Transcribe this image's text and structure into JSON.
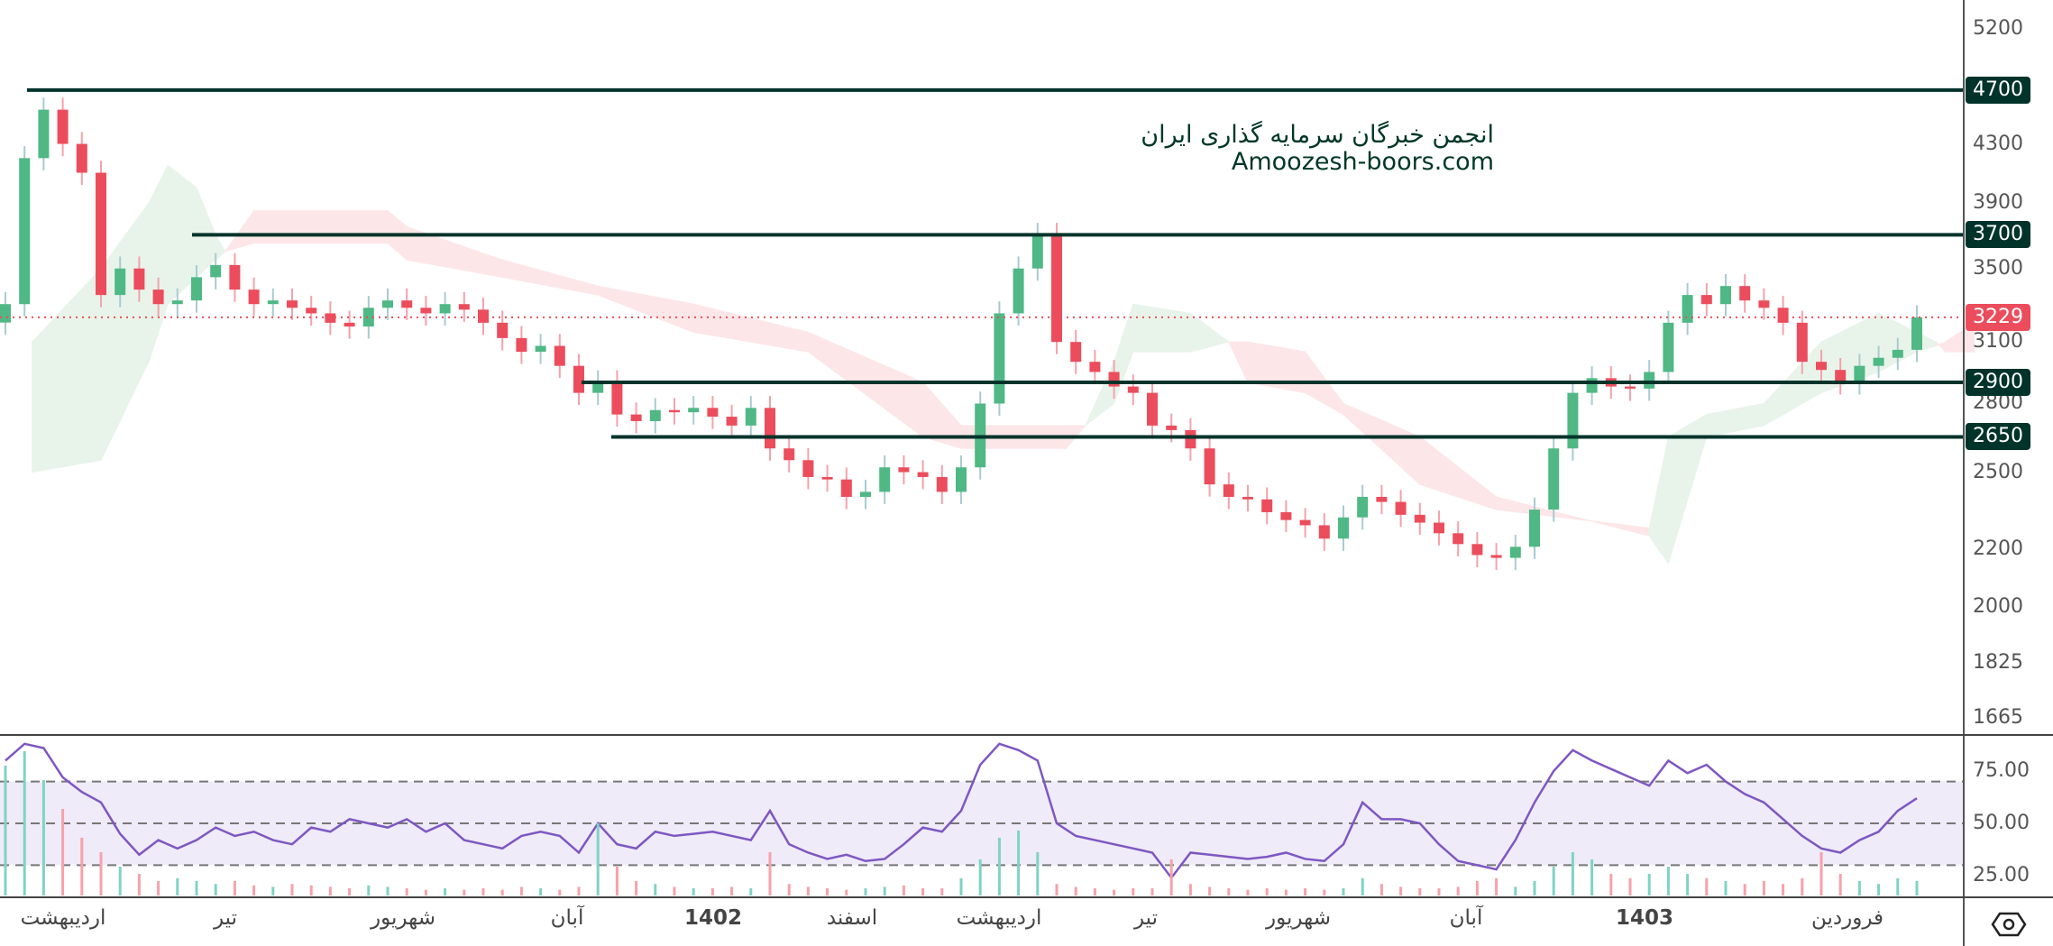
{
  "watermark": {
    "line1": "انجمن خبرگان سرمایه گذاری ایران",
    "line2": "Amoozesh-boors.com"
  },
  "colors": {
    "up": "#4fb884",
    "down": "#eb4d5c",
    "level_line": "#00332a",
    "last_price": "#eb4d5c",
    "cloud_up": "#e8f4ea",
    "cloud_down": "#fde6e8",
    "rsi": "#7e57c2",
    "rsi_band": "#efebf8"
  },
  "chart_data": [
    {
      "type": "candlestick",
      "yscale": "log",
      "ylim": [
        1600,
        5400
      ],
      "y_ticks": [
        "5200",
        "4300",
        "3900",
        "3500",
        "3100",
        "2800",
        "2500",
        "2200",
        "2000",
        "1825",
        "1665"
      ],
      "x_ticks": [
        "اردیبهشت",
        "تیر",
        "شهریور",
        "آبان",
        "1402",
        "اسفند",
        "اردیبهشت",
        "تیر",
        "شهریور",
        "آبان",
        "1403",
        "فروردین"
      ],
      "levels": [
        "4700",
        "3700",
        "2900",
        "2650"
      ],
      "last_price": "3229",
      "close": [
        3300,
        4200,
        4550,
        4300,
        4100,
        3350,
        3500,
        3380,
        3300,
        3320,
        3450,
        3520,
        3380,
        3300,
        3320,
        3280,
        3250,
        3200,
        3180,
        3280,
        3320,
        3280,
        3250,
        3300,
        3270,
        3200,
        3120,
        3050,
        3080,
        2980,
        2850,
        2900,
        2750,
        2720,
        2770,
        2760,
        2780,
        2740,
        2700,
        2780,
        2600,
        2550,
        2480,
        2470,
        2400,
        2420,
        2520,
        2500,
        2480,
        2420,
        2520,
        2800,
        3250,
        3500,
        3700,
        3100,
        3000,
        2950,
        2880,
        2850,
        2700,
        2680,
        2600,
        2450,
        2400,
        2390,
        2340,
        2310,
        2290,
        2240,
        2320,
        2400,
        2380,
        2330,
        2300,
        2260,
        2220,
        2180,
        2170,
        2210,
        2350,
        2600,
        2850,
        2920,
        2880,
        2870,
        2950,
        3200,
        3350,
        3300,
        3400,
        3320,
        3280,
        3200,
        3000,
        2960,
        2900,
        2980,
        3020,
        3060,
        3229
      ],
      "volume": [
        0.9,
        1,
        0.8,
        0.6,
        0.4,
        0.3,
        0.2,
        0.15,
        0.1,
        0.12,
        0.1,
        0.08,
        0.1,
        0.07,
        0.06,
        0.08,
        0.07,
        0.06,
        0.05,
        0.07,
        0.06,
        0.05,
        0.04,
        0.05,
        0.04,
        0.05,
        0.04,
        0.06,
        0.05,
        0.04,
        0.06,
        0.5,
        0.2,
        0.1,
        0.08,
        0.06,
        0.05,
        0.05,
        0.06,
        0.05,
        0.3,
        0.08,
        0.06,
        0.05,
        0.04,
        0.05,
        0.06,
        0.07,
        0.05,
        0.05,
        0.12,
        0.25,
        0.4,
        0.45,
        0.3,
        0.08,
        0.06,
        0.05,
        0.04,
        0.05,
        0.05,
        0.25,
        0.08,
        0.06,
        0.05,
        0.04,
        0.05,
        0.04,
        0.05,
        0.04,
        0.05,
        0.12,
        0.08,
        0.06,
        0.05,
        0.05,
        0.06,
        0.1,
        0.12,
        0.06,
        0.1,
        0.2,
        0.3,
        0.25,
        0.15,
        0.12,
        0.15,
        0.2,
        0.15,
        0.12,
        0.1,
        0.08,
        0.1,
        0.08,
        0.12,
        0.3,
        0.15,
        0.1,
        0.08,
        0.12,
        0.1
      ],
      "cloud": [
        [
          1.4,
          3100,
          2500
        ],
        [
          5,
          3500,
          2550
        ],
        [
          7.5,
          3900,
          3000
        ],
        [
          8.5,
          4150,
          3300
        ],
        [
          10,
          4000,
          3450
        ],
        [
          11,
          3700,
          3550
        ],
        [
          11.5,
          3600,
          3600
        ],
        [
          13,
          3650,
          3850
        ],
        [
          20,
          3650,
          3850
        ],
        [
          21,
          3550,
          3750
        ],
        [
          26,
          3450,
          3550
        ],
        [
          31,
          3350,
          3400
        ],
        [
          36,
          3150,
          3300
        ],
        [
          42,
          3050,
          3150
        ],
        [
          48,
          2650,
          2900
        ],
        [
          50,
          2600,
          2700
        ],
        [
          55.5,
          2600,
          2700
        ],
        [
          56.5,
          2700,
          2700
        ],
        [
          58,
          3000,
          2800
        ],
        [
          59,
          3300,
          3050
        ],
        [
          62,
          3250,
          3050
        ],
        [
          64,
          3100,
          3100
        ],
        [
          65,
          2900,
          3100
        ],
        [
          68,
          2850,
          3050
        ],
        [
          70,
          2750,
          2800
        ],
        [
          74,
          2450,
          2650
        ],
        [
          78,
          2350,
          2400
        ],
        [
          86,
          2280,
          2250
        ],
        [
          87,
          2650,
          2150
        ],
        [
          89,
          2750,
          2650
        ],
        [
          92,
          2800,
          2700
        ],
        [
          95,
          3100,
          2850
        ],
        [
          98,
          3250,
          2950
        ],
        [
          100,
          3150,
          3050
        ],
        [
          101,
          3100,
          3080
        ],
        [
          101.5,
          3050,
          3100
        ],
        [
          103,
          3050,
          3200
        ]
      ]
    },
    {
      "type": "line",
      "ylim": [
        14,
        92
      ],
      "y_ticks": [
        "75.00",
        "50.00",
        "25.00"
      ],
      "band": [
        30,
        70
      ],
      "values": [
        80,
        88,
        86,
        72,
        65,
        60,
        45,
        35,
        42,
        38,
        42,
        48,
        44,
        46,
        42,
        40,
        48,
        46,
        52,
        50,
        48,
        52,
        46,
        50,
        42,
        40,
        38,
        44,
        46,
        44,
        36,
        50,
        40,
        38,
        46,
        44,
        45,
        46,
        44,
        42,
        56,
        40,
        36,
        33,
        35,
        32,
        33,
        40,
        48,
        46,
        56,
        78,
        88,
        85,
        80,
        50,
        44,
        42,
        40,
        38,
        36,
        24,
        36,
        35,
        34,
        33,
        34,
        36,
        33,
        32,
        40,
        60,
        52,
        52,
        50,
        40,
        32,
        30,
        28,
        42,
        60,
        75,
        85,
        80,
        76,
        72,
        68,
        80,
        74,
        78,
        70,
        64,
        60,
        52,
        44,
        38,
        36,
        42,
        46,
        56,
        62
      ]
    }
  ]
}
